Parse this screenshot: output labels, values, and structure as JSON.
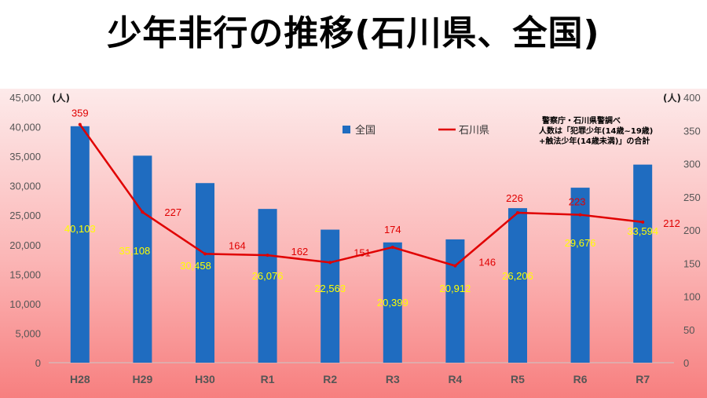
{
  "title": "少年非行の推移(石川県、全国)",
  "chart_data": {
    "type": "bar+line",
    "categories": [
      "H28",
      "H29",
      "H30",
      "R1",
      "R2",
      "R3",
      "R4",
      "R5",
      "R6",
      "R7"
    ],
    "series": [
      {
        "name": "全国",
        "type": "bar",
        "axis": "left",
        "color": "#1f6cc0",
        "values": [
          40103,
          35108,
          30458,
          26076,
          22563,
          20399,
          20912,
          26206,
          29676,
          33594
        ],
        "labels": [
          "40,103",
          "35,108",
          "30,458",
          "26,076",
          "22,563",
          "20,399",
          "20,912",
          "26,206",
          "29,676",
          "33,594"
        ]
      },
      {
        "name": "石川県",
        "type": "line",
        "axis": "right",
        "color": "#e00000",
        "values": [
          359,
          227,
          164,
          162,
          151,
          174,
          146,
          226,
          223,
          212
        ],
        "labels": [
          "359",
          "227",
          "164",
          "162",
          "151",
          "174",
          "146",
          "226",
          "223",
          "212"
        ]
      }
    ],
    "left_axis": {
      "min": 0,
      "max": 45000,
      "step": 5000,
      "unit": "(人)",
      "ticks": [
        "0",
        "5,000",
        "10,000",
        "15,000",
        "20,000",
        "25,000",
        "30,000",
        "35,000",
        "40,000",
        "45,000"
      ]
    },
    "right_axis": {
      "min": 0,
      "max": 400,
      "step": 50,
      "unit": "(人)",
      "ticks": [
        "0",
        "50",
        "100",
        "150",
        "200",
        "250",
        "300",
        "350",
        "400"
      ]
    },
    "legend": {
      "placement": "top-center",
      "items": [
        "全国",
        "石川県"
      ]
    },
    "note_lines": [
      "警察庁・石川県警調べ",
      "人数は「犯罪少年(14歳~19歳)",
      "+触法少年(14歳未満)」の合計"
    ]
  }
}
